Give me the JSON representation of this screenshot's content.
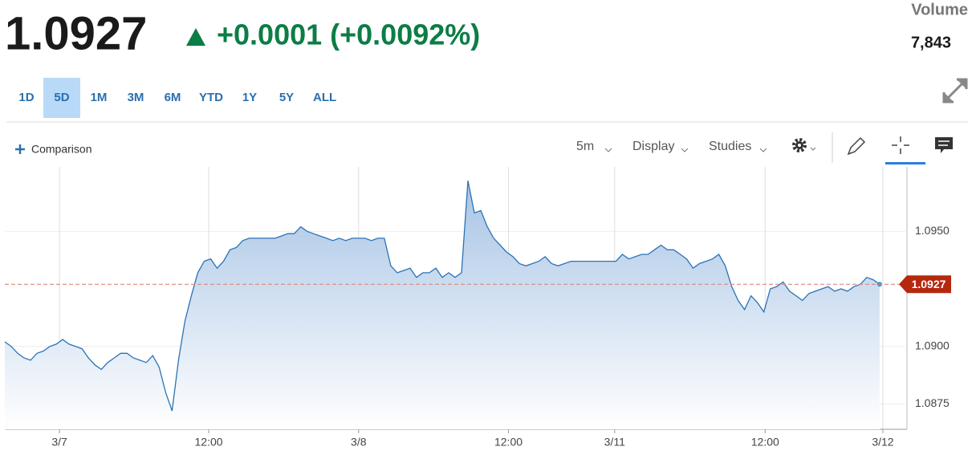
{
  "header": {
    "price": "1.0927",
    "change": "+0.0001 (+0.0092%)",
    "volume_label": "Volume",
    "volume": "7,843"
  },
  "ranges": {
    "items": [
      "1D",
      "5D",
      "1M",
      "3M",
      "6M",
      "YTD",
      "1Y",
      "5Y",
      "ALL"
    ],
    "selected": 1
  },
  "toolbar": {
    "comparison": "Comparison",
    "interval": "5m",
    "display": "Display",
    "studies": "Studies"
  },
  "chart_data": {
    "type": "line",
    "color": "#2b73b6",
    "grid": true,
    "values": [
      1.0902,
      1.09,
      1.0897,
      1.0895,
      1.0894,
      1.0897,
      1.0898,
      1.09,
      1.0901,
      1.0903,
      1.0901,
      1.09,
      1.0899,
      1.0895,
      1.0892,
      1.089,
      1.0893,
      1.0895,
      1.0897,
      1.0897,
      1.0895,
      1.0894,
      1.0893,
      1.0896,
      1.0891,
      1.088,
      1.0872,
      1.0894,
      1.0911,
      1.0922,
      1.0932,
      1.0937,
      1.0938,
      1.0934,
      1.0937,
      1.0942,
      1.0943,
      1.0946,
      1.0947,
      1.0947,
      1.0947,
      1.0947,
      1.0947,
      1.0948,
      1.0949,
      1.0949,
      1.0952,
      1.095,
      1.0949,
      1.0948,
      1.0947,
      1.0946,
      1.0947,
      1.0946,
      1.0947,
      1.0947,
      1.0947,
      1.0946,
      1.0947,
      1.0947,
      1.0935,
      1.0932,
      1.0933,
      1.0934,
      1.093,
      1.0932,
      1.0932,
      1.0934,
      1.093,
      1.0932,
      1.093,
      1.0932,
      1.0972,
      1.0958,
      1.0959,
      1.0952,
      1.0947,
      1.0944,
      1.0941,
      1.0939,
      1.0936,
      1.0935,
      1.0936,
      1.0937,
      1.0939,
      1.0936,
      1.0935,
      1.0936,
      1.0937,
      1.0937,
      1.0937,
      1.0937,
      1.0937,
      1.0937,
      1.0937,
      1.0937,
      1.094,
      1.0938,
      1.0939,
      1.094,
      1.094,
      1.0942,
      1.0944,
      1.0942,
      1.0942,
      1.094,
      1.0938,
      1.0934,
      1.0936,
      1.0937,
      1.0938,
      1.094,
      1.0935,
      1.0926,
      1.092,
      1.0916,
      1.0922,
      1.0919,
      1.0915,
      1.0925,
      1.0926,
      1.0928,
      1.0924,
      1.0922,
      1.092,
      1.0923,
      1.0924,
      1.0925,
      1.0926,
      1.0924,
      1.0925,
      1.0924,
      1.0926,
      1.0927,
      1.093,
      1.0929,
      1.0927
    ],
    "xlim": [
      0,
      140
    ],
    "xticks": [
      {
        "value": 8.5,
        "label": "3/7"
      },
      {
        "value": 31.7,
        "label": "12:00"
      },
      {
        "value": 55,
        "label": "3/8"
      },
      {
        "value": 78.3,
        "label": "12:00"
      },
      {
        "value": 94.8,
        "label": "3/11"
      },
      {
        "value": 118.2,
        "label": "12:00"
      },
      {
        "value": 136.5,
        "label": "3/12"
      }
    ],
    "ylim": [
      1.0864,
      1.0978
    ],
    "yticks": [
      1.0875,
      {
        "value": 1.09,
        "label": "1.0900"
      },
      {
        "value": 1.095,
        "label": "1.0950"
      }
    ],
    "last_value": 1.0927
  }
}
